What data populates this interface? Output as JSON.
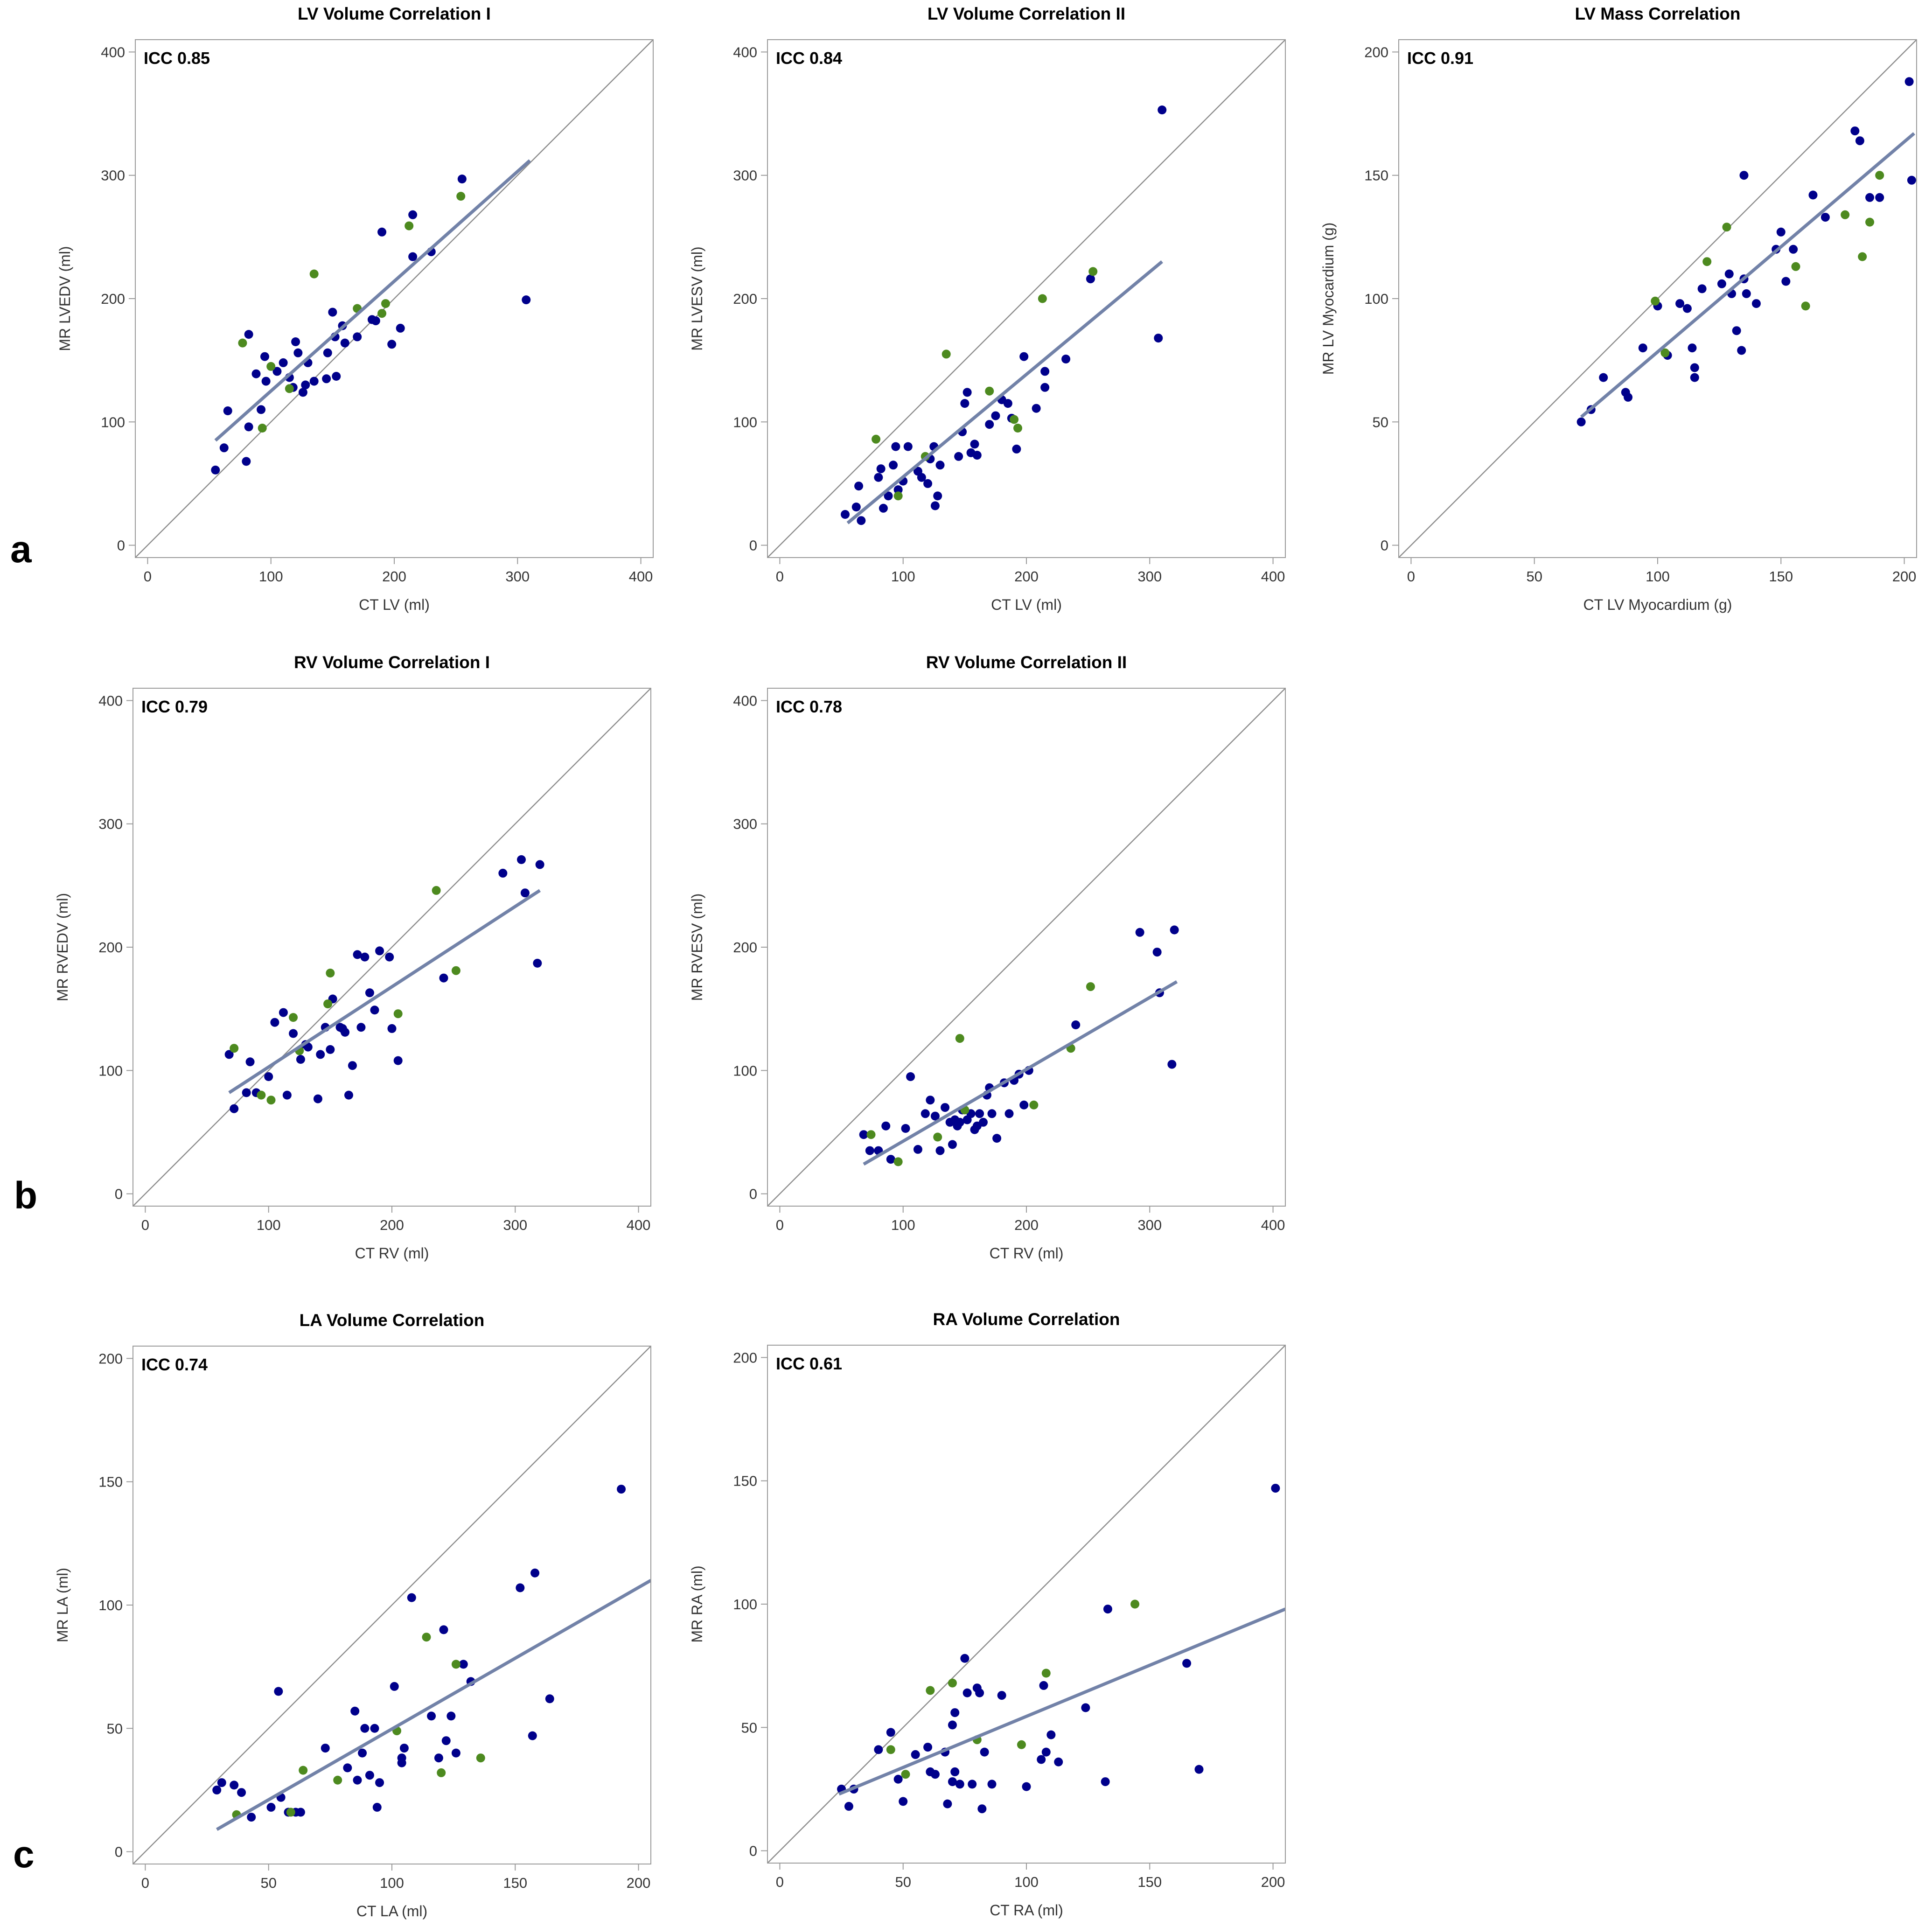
{
  "row_labels": [
    "a",
    "b",
    "c"
  ],
  "colors": {
    "group_blue": "#00008b",
    "group_green": "#4d8a1f",
    "fit_line": "#7282a8",
    "identity_line": "#8c8c8c"
  },
  "chart_data": [
    {
      "type": "scatter",
      "title": "LV Volume Correlation I",
      "annotation": "ICC 0.85",
      "xlabel": "CT LV (ml)",
      "ylabel": "MR LVEDV (ml)",
      "xlim": [
        -10,
        410
      ],
      "ylim": [
        -10,
        410
      ],
      "ticks": [
        0,
        100,
        200,
        300,
        400
      ],
      "tick_labels": [
        "0",
        "100",
        "200",
        "300",
        "400"
      ],
      "fit": {
        "x": [
          55,
          310
        ],
        "y": [
          85,
          312
        ]
      },
      "series": [
        {
          "name": "blue",
          "x": [
            55,
            62,
            65,
            80,
            82,
            82,
            88,
            92,
            95,
            96,
            105,
            110,
            115,
            118,
            120,
            122,
            126,
            128,
            130,
            135,
            145,
            146,
            150,
            152,
            153,
            158,
            160,
            170,
            182,
            185,
            190,
            198,
            205,
            215,
            215,
            230,
            255,
            307
          ],
          "y": [
            61,
            79,
            109,
            68,
            96,
            171,
            139,
            110,
            153,
            133,
            141,
            148,
            136,
            128,
            165,
            156,
            124,
            130,
            148,
            133,
            135,
            156,
            189,
            169,
            137,
            178,
            164,
            169,
            183,
            182,
            254,
            163,
            176,
            268,
            234,
            238,
            297,
            199
          ]
        },
        {
          "name": "green",
          "x": [
            77,
            93,
            100,
            115,
            135,
            170,
            190,
            193,
            212,
            254
          ],
          "y": [
            164,
            95,
            145,
            127,
            220,
            192,
            188,
            196,
            259,
            283
          ]
        }
      ]
    },
    {
      "type": "scatter",
      "title": "LV Volume Correlation II",
      "annotation": "ICC 0.84",
      "xlabel": "CT LV (ml)",
      "ylabel": "MR LVESV (ml)",
      "xlim": [
        -10,
        410
      ],
      "ylim": [
        -10,
        410
      ],
      "ticks": [
        0,
        100,
        200,
        300,
        400
      ],
      "tick_labels": [
        "0",
        "100",
        "200",
        "300",
        "400"
      ],
      "fit": {
        "x": [
          55,
          310
        ],
        "y": [
          18,
          230
        ]
      },
      "series": [
        {
          "name": "blue",
          "x": [
            53,
            62,
            64,
            66,
            80,
            82,
            84,
            88,
            92,
            94,
            96,
            100,
            104,
            112,
            115,
            120,
            122,
            125,
            126,
            128,
            130,
            145,
            148,
            150,
            152,
            155,
            158,
            160,
            170,
            175,
            180,
            185,
            188,
            192,
            198,
            208,
            215,
            215,
            232,
            252,
            307,
            310
          ],
          "y": [
            25,
            31,
            48,
            20,
            55,
            62,
            30,
            40,
            65,
            80,
            45,
            52,
            80,
            60,
            55,
            50,
            70,
            80,
            32,
            40,
            65,
            72,
            92,
            115,
            124,
            75,
            82,
            73,
            98,
            105,
            118,
            115,
            103,
            78,
            153,
            111,
            141,
            128,
            151,
            216,
            168,
            353
          ]
        },
        {
          "name": "green",
          "x": [
            78,
            96,
            118,
            135,
            170,
            190,
            193,
            213,
            254
          ],
          "y": [
            86,
            40,
            72,
            155,
            125,
            102,
            95,
            200,
            222
          ]
        }
      ]
    },
    {
      "type": "scatter",
      "title": "LV Mass Correlation",
      "annotation": "ICC 0.91",
      "xlabel": "CT LV Myocardium (g)",
      "ylabel": "MR LV Myocardium (g)",
      "xlim": [
        -5,
        205
      ],
      "ylim": [
        -5,
        205
      ],
      "ticks": [
        0,
        50,
        100,
        150,
        200
      ],
      "tick_labels": [
        "0",
        "50",
        "100",
        "150",
        "200"
      ],
      "fit": {
        "x": [
          69,
          204
        ],
        "y": [
          52,
          167
        ]
      },
      "series": [
        {
          "name": "blue",
          "x": [
            69,
            73,
            78,
            87,
            88,
            94,
            100,
            104,
            109,
            112,
            114,
            115,
            115,
            118,
            126,
            129,
            130,
            132,
            134,
            135,
            135,
            136,
            140,
            148,
            150,
            152,
            155,
            163,
            168,
            180,
            182,
            186,
            190,
            202,
            203
          ],
          "y": [
            50,
            55,
            68,
            62,
            60,
            80,
            97,
            77,
            98,
            96,
            80,
            72,
            68,
            104,
            106,
            110,
            102,
            87,
            79,
            150,
            108,
            102,
            98,
            120,
            127,
            107,
            120,
            142,
            133,
            168,
            164,
            141,
            141,
            188,
            148
          ]
        },
        {
          "name": "green",
          "x": [
            99,
            103,
            120,
            128,
            156,
            160,
            176,
            183,
            186,
            190
          ],
          "y": [
            99,
            78,
            115,
            129,
            113,
            97,
            134,
            117,
            131,
            150
          ]
        }
      ]
    },
    {
      "type": "scatter",
      "title": "RV Volume Correlation I",
      "annotation": "ICC 0.79",
      "xlabel": "CT RV (ml)",
      "ylabel": "MR RVEDV (ml)",
      "xlim": [
        -10,
        410
      ],
      "ylim": [
        -10,
        410
      ],
      "ticks": [
        0,
        100,
        200,
        300,
        400
      ],
      "tick_labels": [
        "0",
        "100",
        "200",
        "300",
        "400"
      ],
      "fit": {
        "x": [
          68,
          320
        ],
        "y": [
          82,
          246
        ]
      },
      "series": [
        {
          "name": "blue",
          "x": [
            68,
            72,
            82,
            85,
            90,
            100,
            105,
            112,
            115,
            120,
            126,
            130,
            132,
            140,
            142,
            146,
            150,
            152,
            158,
            160,
            162,
            165,
            168,
            172,
            175,
            178,
            182,
            186,
            190,
            198,
            200,
            205,
            242,
            290,
            305,
            308,
            318,
            320
          ],
          "y": [
            113,
            69,
            82,
            107,
            82,
            95,
            139,
            147,
            80,
            130,
            109,
            121,
            119,
            77,
            113,
            135,
            117,
            158,
            135,
            134,
            131,
            80,
            104,
            194,
            135,
            192,
            163,
            149,
            197,
            192,
            134,
            108,
            175,
            260,
            271,
            244,
            187,
            267
          ]
        },
        {
          "name": "green",
          "x": [
            72,
            94,
            102,
            120,
            125,
            148,
            150,
            205,
            236,
            252
          ],
          "y": [
            118,
            80,
            76,
            143,
            116,
            154,
            179,
            146,
            246,
            181
          ]
        }
      ]
    },
    {
      "type": "scatter",
      "title": "RV Volume Correlation II",
      "annotation": "ICC 0.78",
      "xlabel": "CT RV (ml)",
      "ylabel": "MR RVESV (ml)",
      "xlim": [
        -10,
        410
      ],
      "ylim": [
        -10,
        410
      ],
      "ticks": [
        0,
        100,
        200,
        300,
        400
      ],
      "tick_labels": [
        "0",
        "100",
        "200",
        "300",
        "400"
      ],
      "fit": {
        "x": [
          68,
          322
        ],
        "y": [
          24,
          172
        ]
      },
      "series": [
        {
          "name": "blue",
          "x": [
            68,
            73,
            80,
            86,
            90,
            102,
            106,
            112,
            118,
            122,
            126,
            130,
            134,
            138,
            140,
            142,
            144,
            146,
            148,
            152,
            155,
            158,
            160,
            162,
            165,
            168,
            170,
            172,
            176,
            182,
            186,
            190,
            194,
            198,
            202,
            240,
            292,
            306,
            308,
            318,
            320
          ],
          "y": [
            48,
            35,
            35,
            55,
            28,
            53,
            95,
            36,
            65,
            76,
            63,
            35,
            70,
            58,
            40,
            60,
            55,
            58,
            68,
            60,
            65,
            52,
            55,
            65,
            58,
            80,
            86,
            65,
            45,
            90,
            65,
            92,
            97,
            72,
            100,
            137,
            212,
            196,
            163,
            105,
            214
          ]
        },
        {
          "name": "green",
          "x": [
            74,
            96,
            128,
            146,
            150,
            206,
            236,
            252
          ],
          "y": [
            48,
            26,
            46,
            126,
            68,
            72,
            118,
            168
          ]
        }
      ]
    },
    {
      "type": "scatter",
      "title": "LA Volume Correlation",
      "annotation": "ICC 0.74",
      "xlabel": "CT LA (ml)",
      "ylabel": "MR LA (ml)",
      "xlim": [
        -5,
        205
      ],
      "ylim": [
        -5,
        205
      ],
      "ticks": [
        0,
        50,
        100,
        150,
        200
      ],
      "tick_labels": [
        "0",
        "50",
        "100",
        "150",
        "200"
      ],
      "fit": {
        "x": [
          29,
          205
        ],
        "y": [
          9,
          110
        ]
      },
      "series": [
        {
          "name": "blue",
          "x": [
            29,
            31,
            36,
            39,
            43,
            51,
            54,
            55,
            58,
            61,
            63,
            73,
            82,
            85,
            86,
            88,
            89,
            91,
            93,
            94,
            95,
            101,
            104,
            104,
            105,
            108,
            116,
            119,
            121,
            122,
            124,
            126,
            129,
            132,
            152,
            157,
            158,
            164,
            193
          ],
          "y": [
            25,
            28,
            27,
            24,
            14,
            18,
            65,
            22,
            16,
            16,
            16,
            42,
            34,
            57,
            29,
            40,
            50,
            31,
            50,
            18,
            28,
            67,
            36,
            38,
            42,
            103,
            55,
            38,
            90,
            45,
            55,
            40,
            76,
            69,
            107,
            47,
            113,
            62,
            147
          ]
        },
        {
          "name": "green",
          "x": [
            37,
            59,
            64,
            78,
            102,
            114,
            120,
            126,
            136
          ],
          "y": [
            15,
            16,
            33,
            29,
            49,
            87,
            32,
            76,
            38
          ]
        }
      ]
    },
    {
      "type": "scatter",
      "title": "RA Volume Correlation",
      "annotation": "ICC 0.61",
      "xlabel": "CT RA (ml)",
      "ylabel": "MR RA (ml)",
      "xlim": [
        -5,
        205
      ],
      "ylim": [
        -5,
        205
      ],
      "ticks": [
        0,
        50,
        100,
        150,
        200
      ],
      "tick_labels": [
        "0",
        "50",
        "100",
        "150",
        "200"
      ],
      "fit": {
        "x": [
          24,
          205
        ],
        "y": [
          23,
          98
        ]
      },
      "series": [
        {
          "name": "blue",
          "x": [
            25,
            28,
            30,
            40,
            45,
            48,
            50,
            55,
            60,
            61,
            63,
            67,
            68,
            70,
            70,
            71,
            71,
            73,
            75,
            76,
            78,
            80,
            81,
            82,
            83,
            86,
            90,
            100,
            106,
            107,
            108,
            110,
            113,
            124,
            132,
            133,
            165,
            170,
            201
          ],
          "y": [
            25,
            18,
            25,
            41,
            48,
            29,
            20,
            39,
            42,
            32,
            31,
            40,
            19,
            28,
            51,
            56,
            32,
            27,
            78,
            64,
            27,
            66,
            64,
            17,
            40,
            27,
            63,
            26,
            37,
            67,
            40,
            47,
            36,
            58,
            28,
            98,
            76,
            33,
            147
          ]
        },
        {
          "name": "green",
          "x": [
            45,
            51,
            61,
            70,
            80,
            98,
            108,
            144
          ],
          "y": [
            41,
            31,
            65,
            68,
            45,
            43,
            72,
            100
          ]
        }
      ]
    }
  ]
}
